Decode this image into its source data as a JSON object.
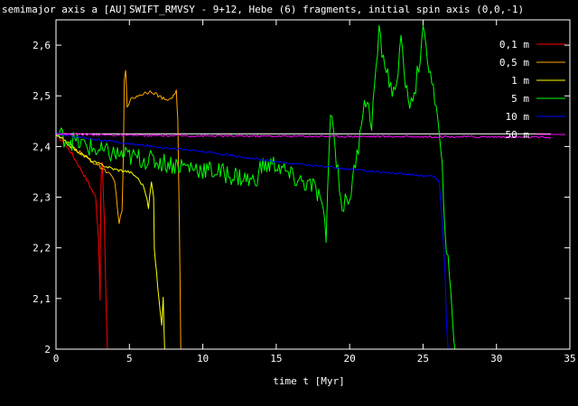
{
  "chart_data": {
    "type": "line",
    "title": "SWIFT_RMVSY - 9+12, Hebe (6) fragments, initial spin axis (0,0,-1)",
    "ylabel": "semimajor axis a [AU]",
    "xlabel": "time t [Myr]",
    "xlim": [
      0,
      35
    ],
    "ylim": [
      2.0,
      2.65
    ],
    "x_ticks": [
      0,
      5,
      10,
      15,
      20,
      25,
      30,
      35
    ],
    "y_ticks": [
      2,
      2.1,
      2.2,
      2.3,
      2.4,
      2.5,
      2.6
    ],
    "x_tick_labels": [
      "0",
      "5",
      "10",
      "15",
      "20",
      "25",
      "30",
      "35"
    ],
    "y_tick_labels": [
      "2",
      "2,1",
      "2,2",
      "2,3",
      "2,4",
      "2,5",
      "2,6"
    ],
    "grid": false,
    "legend_position": "top-right",
    "series": [
      {
        "name": "0,1 m",
        "color": "#ff0000",
        "noise": 0.004,
        "points": [
          [
            0,
            2.425
          ],
          [
            1.0,
            2.39
          ],
          [
            2.0,
            2.34
          ],
          [
            2.7,
            2.3
          ],
          [
            2.9,
            2.22
          ],
          [
            3.0,
            2.1
          ],
          [
            3.05,
            2.3
          ],
          [
            3.1,
            2.36
          ],
          [
            3.15,
            2.37
          ],
          [
            3.3,
            2.25
          ],
          [
            3.4,
            2.1
          ],
          [
            3.5,
            2.0
          ]
        ]
      },
      {
        "name": "0,5 m",
        "color": "#ffa500",
        "noise": 0.004,
        "points": [
          [
            0,
            2.425
          ],
          [
            2.0,
            2.38
          ],
          [
            3.5,
            2.35
          ],
          [
            4.0,
            2.33
          ],
          [
            4.3,
            2.25
          ],
          [
            4.5,
            2.27
          ],
          [
            4.6,
            2.4
          ],
          [
            4.65,
            2.53
          ],
          [
            4.75,
            2.55
          ],
          [
            4.85,
            2.48
          ],
          [
            5.0,
            2.49
          ],
          [
            5.5,
            2.5
          ],
          [
            6.5,
            2.51
          ],
          [
            7.5,
            2.49
          ],
          [
            8.0,
            2.5
          ],
          [
            8.2,
            2.51
          ],
          [
            8.3,
            2.45
          ],
          [
            8.4,
            2.25
          ],
          [
            8.5,
            2.0
          ]
        ]
      },
      {
        "name": "1 m",
        "color": "#ffff00",
        "noise": 0.003,
        "points": [
          [
            0,
            2.425
          ],
          [
            1.0,
            2.4
          ],
          [
            2.5,
            2.37
          ],
          [
            4.0,
            2.355
          ],
          [
            5.0,
            2.35
          ],
          [
            5.5,
            2.34
          ],
          [
            6.0,
            2.32
          ],
          [
            6.3,
            2.28
          ],
          [
            6.5,
            2.33
          ],
          [
            6.65,
            2.3
          ],
          [
            6.7,
            2.2
          ],
          [
            6.85,
            2.15
          ],
          [
            7.0,
            2.1
          ],
          [
            7.2,
            2.05
          ],
          [
            7.3,
            2.1
          ],
          [
            7.4,
            2.0
          ]
        ]
      },
      {
        "name": "5 m",
        "color": "#00ff00",
        "noise": 0.02,
        "points": [
          [
            0,
            2.425
          ],
          [
            3.0,
            2.39
          ],
          [
            6.0,
            2.375
          ],
          [
            9.0,
            2.36
          ],
          [
            11.0,
            2.35
          ],
          [
            12.5,
            2.34
          ],
          [
            13.5,
            2.33
          ],
          [
            14.0,
            2.36
          ],
          [
            15.0,
            2.365
          ],
          [
            16.0,
            2.34
          ],
          [
            17.5,
            2.32
          ],
          [
            18.0,
            2.3
          ],
          [
            18.4,
            2.22
          ],
          [
            18.7,
            2.48
          ],
          [
            19.0,
            2.4
          ],
          [
            19.5,
            2.28
          ],
          [
            20.0,
            2.3
          ],
          [
            20.5,
            2.38
          ],
          [
            21.0,
            2.5
          ],
          [
            21.5,
            2.45
          ],
          [
            22.0,
            2.62
          ],
          [
            22.5,
            2.55
          ],
          [
            23.0,
            2.5
          ],
          [
            23.5,
            2.6
          ],
          [
            24.0,
            2.48
          ],
          [
            24.5,
            2.52
          ],
          [
            25.0,
            2.62
          ],
          [
            25.5,
            2.55
          ],
          [
            26.0,
            2.45
          ],
          [
            26.3,
            2.35
          ],
          [
            26.6,
            2.2
          ],
          [
            26.9,
            2.1
          ],
          [
            27.1,
            2.02
          ],
          [
            27.3,
            2.0
          ]
        ]
      },
      {
        "name": "10 m",
        "color": "#0000ff",
        "noise": 0.002,
        "points": [
          [
            0,
            2.425
          ],
          [
            5.0,
            2.405
          ],
          [
            10.0,
            2.39
          ],
          [
            15.0,
            2.37
          ],
          [
            20.0,
            2.355
          ],
          [
            24.0,
            2.345
          ],
          [
            25.8,
            2.34
          ],
          [
            26.1,
            2.33
          ],
          [
            26.3,
            2.25
          ],
          [
            26.5,
            2.15
          ],
          [
            26.6,
            2.05
          ],
          [
            26.7,
            2.0
          ]
        ]
      },
      {
        "name": "50 m",
        "color": "#ff00ff",
        "noise": 0.002,
        "points": [
          [
            0,
            2.425
          ],
          [
            5.0,
            2.422
          ],
          [
            10.0,
            2.421
          ],
          [
            20.0,
            2.42
          ],
          [
            30.0,
            2.419
          ],
          [
            33.7,
            2.418
          ]
        ]
      }
    ],
    "reference_line": {
      "color": "#ffffff",
      "points": [
        [
          0,
          2.425
        ],
        [
          33.7,
          2.425
        ]
      ]
    }
  }
}
